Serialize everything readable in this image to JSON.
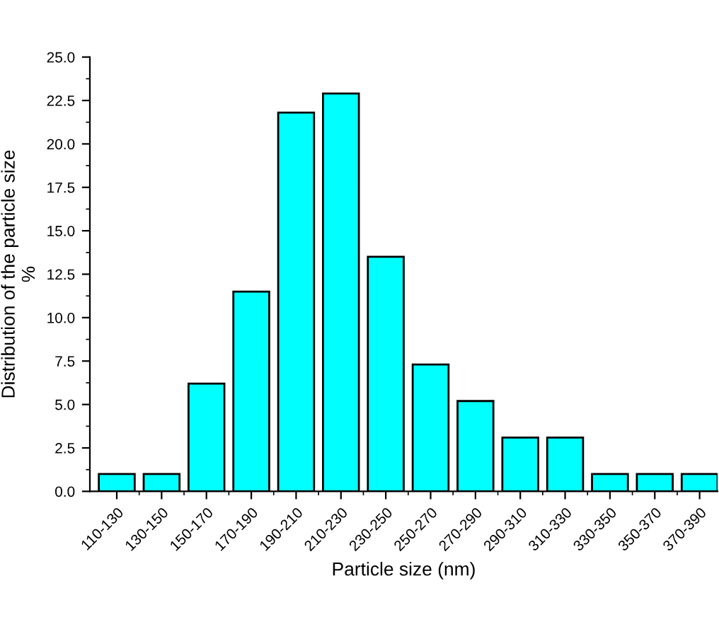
{
  "chart_data": {
    "type": "bar",
    "xlabel": "Particle size (nm)",
    "ylabel": "Distribution of the particle size\n%",
    "categories": [
      "110-130",
      "130-150",
      "150-170",
      "170-190",
      "190-210",
      "210-230",
      "230-250",
      "250-270",
      "270-290",
      "290-310",
      "310-330",
      "330-350",
      "350-370",
      "370-390"
    ],
    "values": [
      1.0,
      1.0,
      6.2,
      11.5,
      21.8,
      22.9,
      13.5,
      7.3,
      5.2,
      3.1,
      3.1,
      1.0,
      1.0,
      1.0
    ],
    "color": "#00ffff",
    "ylim": [
      0,
      25
    ],
    "yticks": [
      {
        "value": 0,
        "label": "0.0"
      },
      {
        "value": 2.5,
        "label": "2.5"
      },
      {
        "value": 5,
        "label": "5.0"
      },
      {
        "value": 7.5,
        "label": "7.5"
      },
      {
        "value": 10,
        "label": "10.0"
      },
      {
        "value": 12.5,
        "label": "12.5"
      },
      {
        "value": 15,
        "label": "15.0"
      },
      {
        "value": 17.5,
        "label": "17.5"
      },
      {
        "value": 20,
        "label": "20.0"
      },
      {
        "value": 22.5,
        "label": "22.5"
      },
      {
        "value": 25,
        "label": "25.0"
      }
    ],
    "grid": false,
    "legend": false
  }
}
